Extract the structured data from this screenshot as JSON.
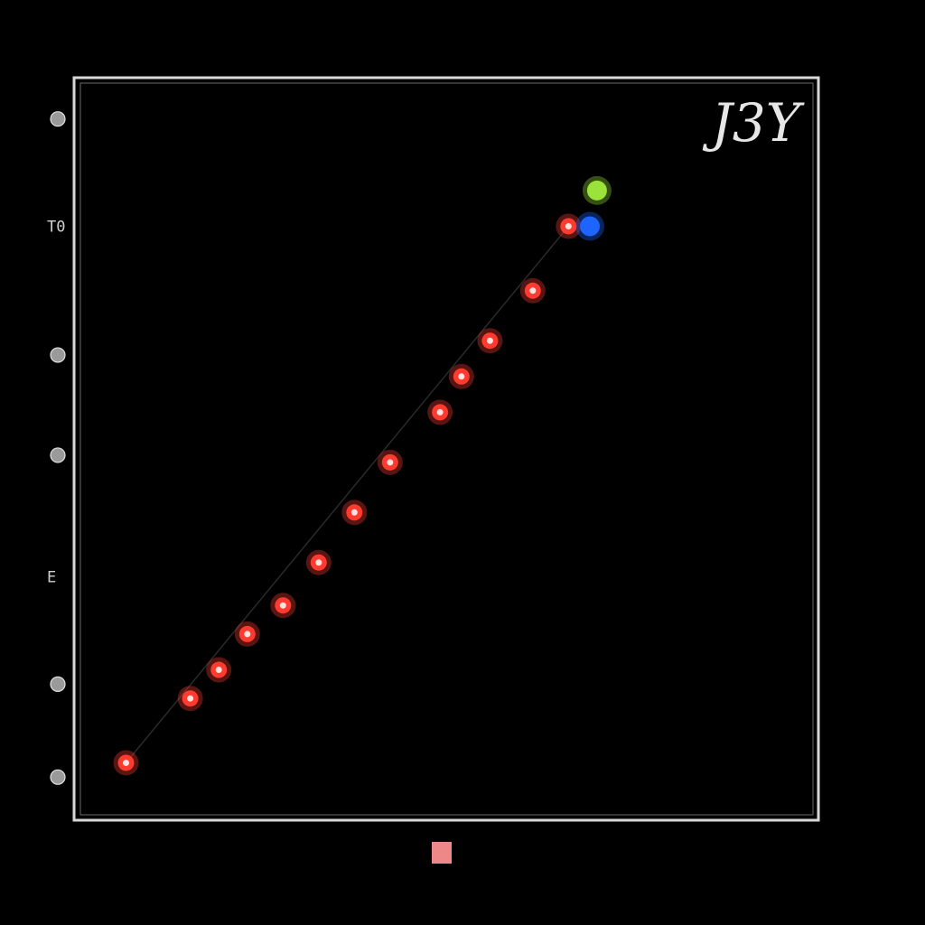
{
  "chart_data": {
    "type": "scatter",
    "title": "",
    "xlabel": "",
    "ylabel": "",
    "corner_label": "J3Y",
    "xlim": [
      0,
      100
    ],
    "ylim": [
      0,
      100
    ],
    "grid": false,
    "y_ticks": [
      {
        "value": 96,
        "label": "",
        "marker": true
      },
      {
        "value": 81,
        "label": "T0",
        "marker": false
      },
      {
        "value": 63,
        "label": "",
        "marker": true
      },
      {
        "value": 49,
        "label": "",
        "marker": true
      },
      {
        "value": 32,
        "label": "E",
        "marker": false
      },
      {
        "value": 17,
        "label": "",
        "marker": true
      },
      {
        "value": 4,
        "label": "",
        "marker": true
      }
    ],
    "series": [
      {
        "color": "#ff3b30",
        "points": [
          {
            "x": 5,
            "y": 6
          },
          {
            "x": 14,
            "y": 15
          },
          {
            "x": 18,
            "y": 19
          },
          {
            "x": 22,
            "y": 24
          },
          {
            "x": 27,
            "y": 28
          },
          {
            "x": 32,
            "y": 34
          },
          {
            "x": 37,
            "y": 41
          },
          {
            "x": 42,
            "y": 48
          },
          {
            "x": 49,
            "y": 55
          },
          {
            "x": 52,
            "y": 60
          },
          {
            "x": 56,
            "y": 65
          },
          {
            "x": 62,
            "y": 72
          },
          {
            "x": 67,
            "y": 81
          }
        ]
      },
      {
        "color": "#1e64ff",
        "points": [
          {
            "x": 70,
            "y": 81
          }
        ]
      },
      {
        "color": "#9be33a",
        "points": [
          {
            "x": 71,
            "y": 86
          }
        ]
      }
    ],
    "colors": {
      "background": "#000000",
      "frame": "#d8d8d8"
    }
  }
}
